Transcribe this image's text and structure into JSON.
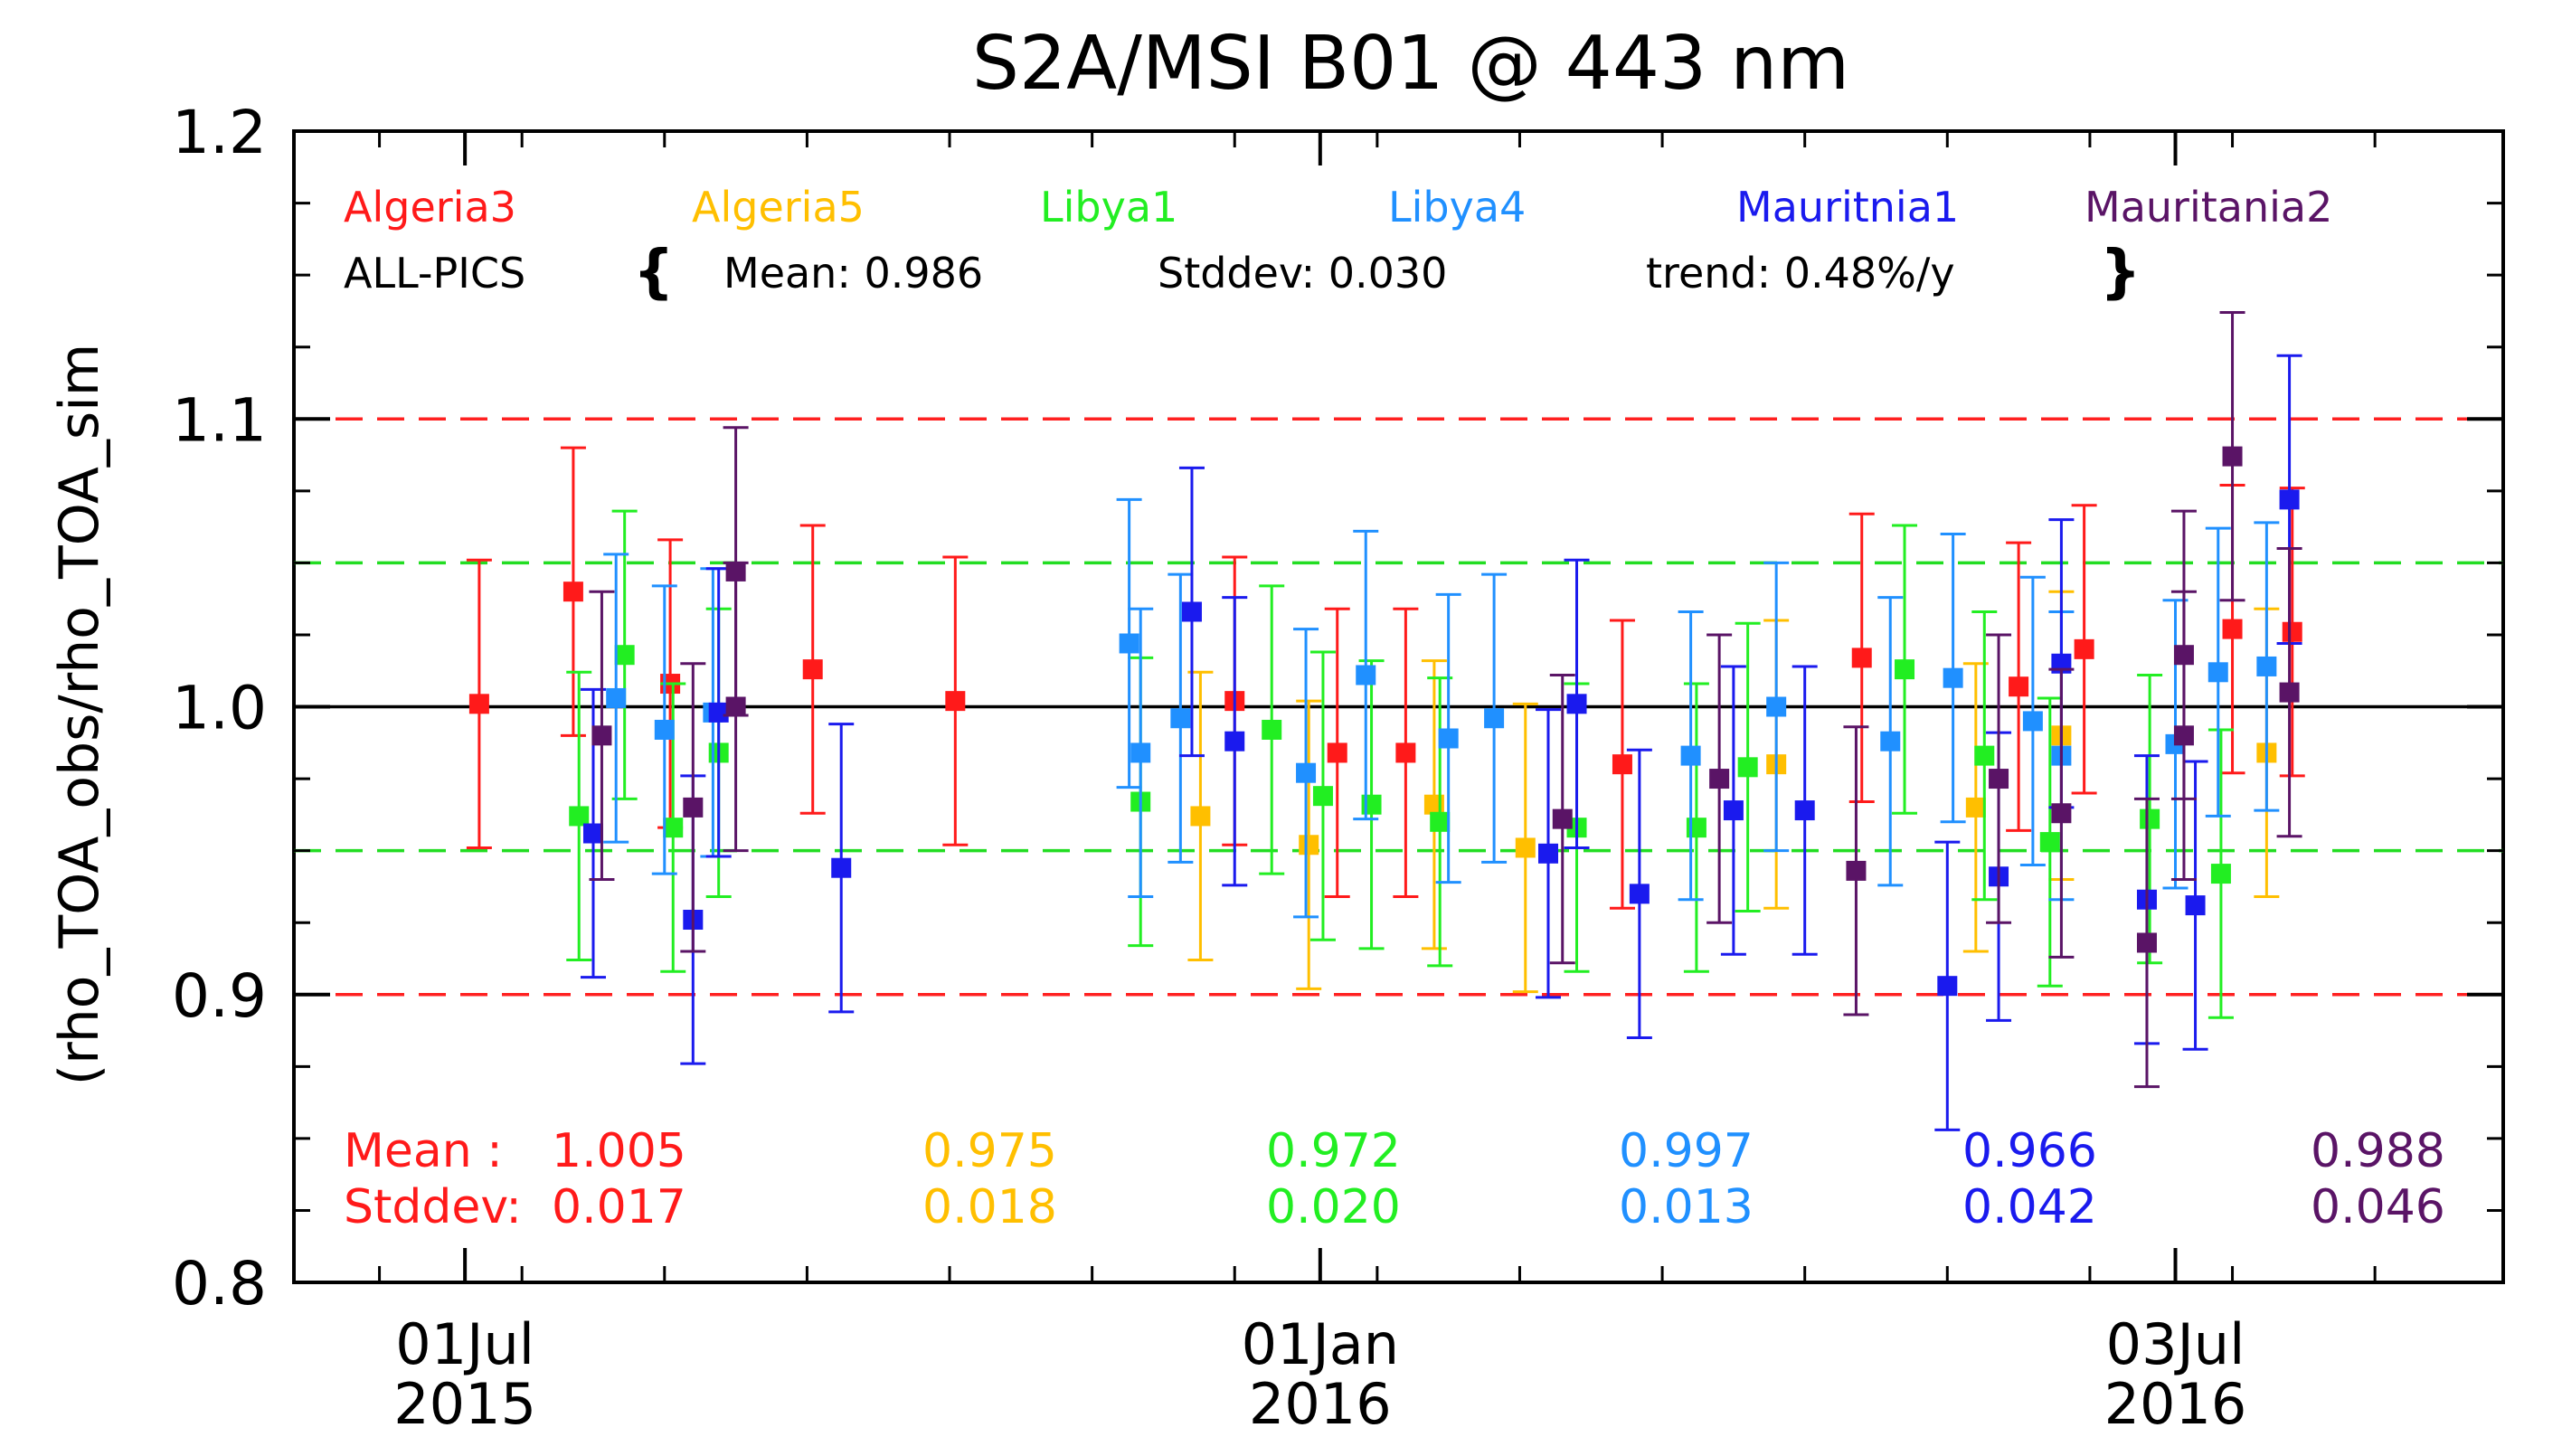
{
  "chart_data": {
    "type": "scatter",
    "title": "S2A/MSI B01 @ 443 nm",
    "ylabel": "(rho_TOA_obs/rho_TOA_sim",
    "xlabel": "",
    "ylim": [
      0.8,
      1.2
    ],
    "xlim": [
      -60,
      715
    ],
    "x_units": "days since 01 Jul 2015",
    "yticks": [
      {
        "value": 0.8,
        "label": "0.8"
      },
      {
        "value": 0.9,
        "label": "0.9"
      },
      {
        "value": 1.0,
        "label": "1.0"
      },
      {
        "value": 1.1,
        "label": "1.1"
      },
      {
        "value": 1.2,
        "label": "1.2"
      }
    ],
    "xticks": [
      {
        "value": 0,
        "label1": "01Jul",
        "label2": "2015"
      },
      {
        "value": 300,
        "label1": "01Jan",
        "label2": "2016"
      },
      {
        "value": 600,
        "label1": "03Jul",
        "label2": "2016"
      }
    ],
    "reference_lines": [
      {
        "y": 1.0,
        "color": "#000000",
        "style": "solid"
      },
      {
        "y": 1.1,
        "color": "#ff2020",
        "style": "dashed"
      },
      {
        "y": 0.9,
        "color": "#ff2020",
        "style": "dashed"
      },
      {
        "y": 1.05,
        "color": "#22dd22",
        "style": "dashed"
      },
      {
        "y": 0.95,
        "color": "#22dd22",
        "style": "dashed"
      }
    ],
    "summary": {
      "label": "ALL-PICS",
      "open": "{",
      "close": "}",
      "mean": "Mean: 0.986",
      "stddev": "Stddev: 0.030",
      "trend": "trend: 0.48%/y"
    },
    "row_labels": {
      "mean": "Mean   :",
      "stddev": "Stddev:"
    },
    "series": [
      {
        "name": "Algeria3",
        "color": "#ff1a1a",
        "mean": "1.005",
        "stddev": "0.017",
        "points": [
          {
            "x": 5,
            "y": 1.001,
            "err": 0.05
          },
          {
            "x": 38,
            "y": 1.04,
            "err": 0.05
          },
          {
            "x": 72,
            "y": 1.008,
            "err": 0.05
          },
          {
            "x": 122,
            "y": 1.013,
            "err": 0.05
          },
          {
            "x": 172,
            "y": 1.002,
            "err": 0.05
          },
          {
            "x": 270,
            "y": 1.002,
            "err": 0.05
          },
          {
            "x": 306,
            "y": 0.984,
            "err": 0.05
          },
          {
            "x": 330,
            "y": 0.984,
            "err": 0.05
          },
          {
            "x": 406,
            "y": 0.98,
            "err": 0.05
          },
          {
            "x": 490,
            "y": 1.017,
            "err": 0.05
          },
          {
            "x": 545,
            "y": 1.007,
            "err": 0.05
          },
          {
            "x": 568,
            "y": 1.02,
            "err": 0.05
          },
          {
            "x": 620,
            "y": 1.027,
            "err": 0.05
          },
          {
            "x": 641,
            "y": 1.026,
            "err": 0.05
          }
        ]
      },
      {
        "name": "Algeria5",
        "color": "#ffbf00",
        "mean": "0.975",
        "stddev": "0.018",
        "points": [
          {
            "x": 258,
            "y": 0.962,
            "err": 0.05
          },
          {
            "x": 296,
            "y": 0.952,
            "err": 0.05
          },
          {
            "x": 340,
            "y": 0.966,
            "err": 0.05
          },
          {
            "x": 372,
            "y": 0.951,
            "err": 0.05
          },
          {
            "x": 460,
            "y": 0.98,
            "err": 0.05
          },
          {
            "x": 530,
            "y": 0.965,
            "err": 0.05
          },
          {
            "x": 560,
            "y": 0.99,
            "err": 0.05
          },
          {
            "x": 632,
            "y": 0.984,
            "err": 0.05
          }
        ]
      },
      {
        "name": "Libya1",
        "color": "#22ee22",
        "mean": "0.972",
        "stddev": "0.020",
        "points": [
          {
            "x": 40,
            "y": 0.962,
            "err": 0.05
          },
          {
            "x": 56,
            "y": 1.018,
            "err": 0.05
          },
          {
            "x": 73,
            "y": 0.958,
            "err": 0.05
          },
          {
            "x": 89,
            "y": 0.984,
            "err": 0.05
          },
          {
            "x": 237,
            "y": 0.967,
            "err": 0.05
          },
          {
            "x": 283,
            "y": 0.992,
            "err": 0.05
          },
          {
            "x": 301,
            "y": 0.969,
            "err": 0.05
          },
          {
            "x": 318,
            "y": 0.966,
            "err": 0.05
          },
          {
            "x": 342,
            "y": 0.96,
            "err": 0.05
          },
          {
            "x": 390,
            "y": 0.958,
            "err": 0.05
          },
          {
            "x": 432,
            "y": 0.958,
            "err": 0.05
          },
          {
            "x": 450,
            "y": 0.979,
            "err": 0.05
          },
          {
            "x": 505,
            "y": 1.013,
            "err": 0.05
          },
          {
            "x": 533,
            "y": 0.983,
            "err": 0.05
          },
          {
            "x": 556,
            "y": 0.953,
            "err": 0.05
          },
          {
            "x": 591,
            "y": 0.961,
            "err": 0.05
          },
          {
            "x": 616,
            "y": 0.942,
            "err": 0.05
          }
        ]
      },
      {
        "name": "Libya4",
        "color": "#2090ff",
        "mean": "0.997",
        "stddev": "0.013",
        "points": [
          {
            "x": 53,
            "y": 1.003,
            "err": 0.05
          },
          {
            "x": 70,
            "y": 0.992,
            "err": 0.05
          },
          {
            "x": 87,
            "y": 0.998,
            "err": 0.05
          },
          {
            "x": 233,
            "y": 1.022,
            "err": 0.05
          },
          {
            "x": 237,
            "y": 0.984,
            "err": 0.05
          },
          {
            "x": 251,
            "y": 0.996,
            "err": 0.05
          },
          {
            "x": 295,
            "y": 0.977,
            "err": 0.05
          },
          {
            "x": 316,
            "y": 1.011,
            "err": 0.05
          },
          {
            "x": 345,
            "y": 0.989,
            "err": 0.05
          },
          {
            "x": 361,
            "y": 0.996,
            "err": 0.05
          },
          {
            "x": 430,
            "y": 0.983,
            "err": 0.05
          },
          {
            "x": 460,
            "y": 1.0,
            "err": 0.05
          },
          {
            "x": 500,
            "y": 0.988,
            "err": 0.05
          },
          {
            "x": 522,
            "y": 1.01,
            "err": 0.05
          },
          {
            "x": 550,
            "y": 0.995,
            "err": 0.05
          },
          {
            "x": 560,
            "y": 0.983,
            "err": 0.05
          },
          {
            "x": 600,
            "y": 0.987,
            "err": 0.05
          },
          {
            "x": 615,
            "y": 1.012,
            "err": 0.05
          },
          {
            "x": 632,
            "y": 1.014,
            "err": 0.05
          }
        ]
      },
      {
        "name": "Mauritnia1",
        "color": "#1a1aee",
        "mean": "0.966",
        "stddev": "0.042",
        "points": [
          {
            "x": 45,
            "y": 0.956,
            "err": 0.05
          },
          {
            "x": 80,
            "y": 0.926,
            "err": 0.05
          },
          {
            "x": 89,
            "y": 0.998,
            "err": 0.05
          },
          {
            "x": 132,
            "y": 0.944,
            "err": 0.05
          },
          {
            "x": 255,
            "y": 1.033,
            "err": 0.05
          },
          {
            "x": 270,
            "y": 0.988,
            "err": 0.05
          },
          {
            "x": 380,
            "y": 0.949,
            "err": 0.05
          },
          {
            "x": 390,
            "y": 1.001,
            "err": 0.05
          },
          {
            "x": 412,
            "y": 0.935,
            "err": 0.05
          },
          {
            "x": 445,
            "y": 0.964,
            "err": 0.05
          },
          {
            "x": 470,
            "y": 0.964,
            "err": 0.05
          },
          {
            "x": 520,
            "y": 0.903,
            "err": 0.05
          },
          {
            "x": 538,
            "y": 0.941,
            "err": 0.05
          },
          {
            "x": 560,
            "y": 1.015,
            "err": 0.05
          },
          {
            "x": 590,
            "y": 0.933,
            "err": 0.05
          },
          {
            "x": 607,
            "y": 0.931,
            "err": 0.05
          },
          {
            "x": 640,
            "y": 1.072,
            "err": 0.05
          }
        ]
      },
      {
        "name": "Mauritania2",
        "color": "#5a1466",
        "mean": "0.988",
        "stddev": "0.046",
        "points": [
          {
            "x": 48,
            "y": 0.99,
            "err": 0.05
          },
          {
            "x": 80,
            "y": 0.965,
            "err": 0.05
          },
          {
            "x": 95,
            "y": 1.047,
            "err": 0.05
          },
          {
            "x": 95,
            "y": 1.0,
            "err": 0.05
          },
          {
            "x": 385,
            "y": 0.961,
            "err": 0.05
          },
          {
            "x": 440,
            "y": 0.975,
            "err": 0.05
          },
          {
            "x": 488,
            "y": 0.943,
            "err": 0.05
          },
          {
            "x": 538,
            "y": 0.975,
            "err": 0.05
          },
          {
            "x": 560,
            "y": 0.963,
            "err": 0.05
          },
          {
            "x": 590,
            "y": 0.918,
            "err": 0.05
          },
          {
            "x": 603,
            "y": 1.018,
            "err": 0.05
          },
          {
            "x": 603,
            "y": 0.99,
            "err": 0.05
          },
          {
            "x": 620,
            "y": 1.087,
            "err": 0.05
          },
          {
            "x": 640,
            "y": 1.005,
            "err": 0.05
          }
        ]
      }
    ]
  }
}
